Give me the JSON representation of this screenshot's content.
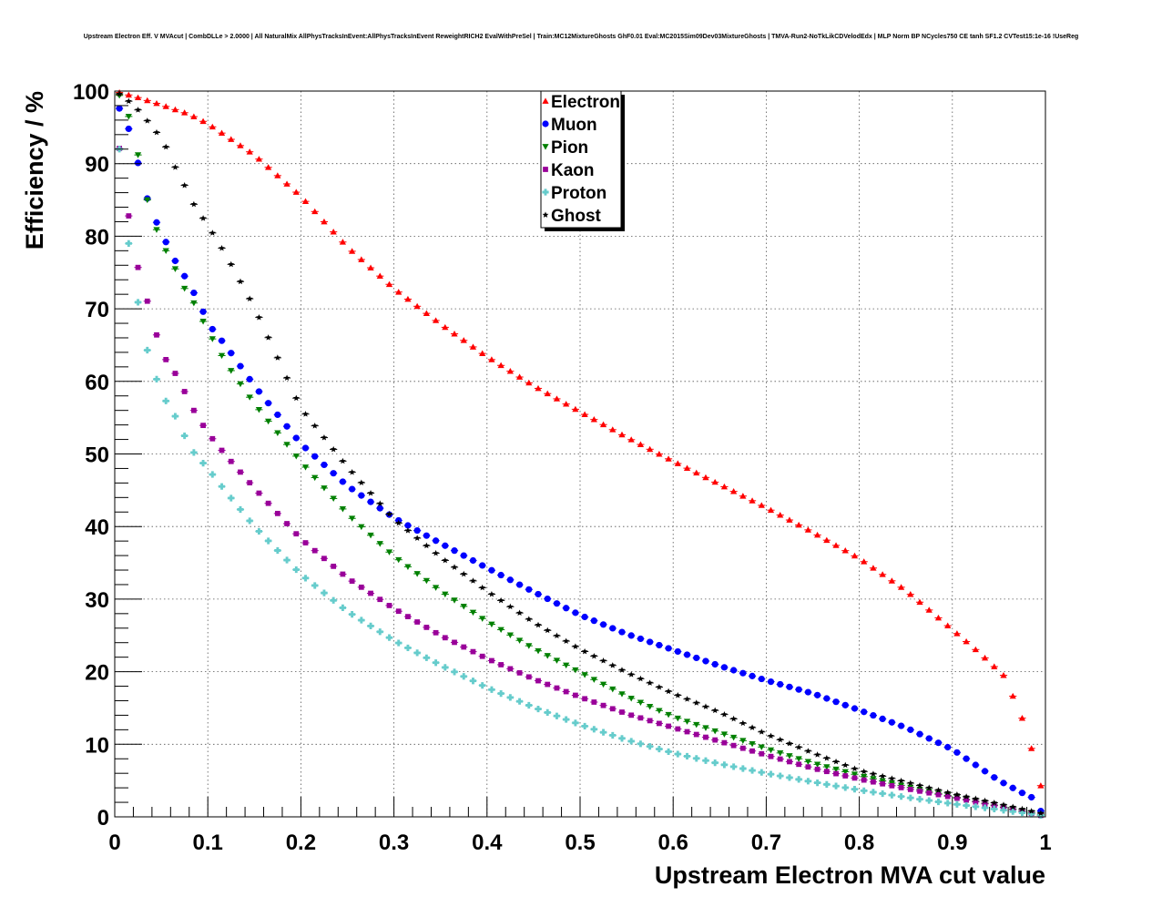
{
  "chart_data": {
    "type": "scatter",
    "title": "Upstream Electron Eff. V MVAcut | CombDLLe > 2.0000 | All NaturalMix AllPhysTracksInEvent:AllPhysTracksInEvent ReweightRICH2 EvalWithPreSel | Train:MC12MixtureGhosts GhF0.01 Eval:MC2015Sim09Dev03MixtureGhosts | TMVA-Run2-NoTkLikCDVelodEdx | MLP Norm BP NCycles750 CE tanh SF1.2 CVTest15:1e-16 !UseReg",
    "xlabel": "Upstream Electron MVA cut value",
    "ylabel": "Efficiency / %",
    "xlim": [
      0,
      1
    ],
    "ylim": [
      0,
      100
    ],
    "xticks": [
      "0",
      "0.1",
      "0.2",
      "0.3",
      "0.4",
      "0.5",
      "0.6",
      "0.7",
      "0.8",
      "0.9",
      "1"
    ],
    "yticks": [
      "0",
      "10",
      "20",
      "30",
      "40",
      "50",
      "60",
      "70",
      "80",
      "90",
      "100"
    ],
    "grid": true,
    "legend_position": "top-center",
    "series": [
      {
        "name": "Electron",
        "color": "#ff0000",
        "marker": "triangle-up",
        "anchors": [
          [
            0.005,
            99.8
          ],
          [
            0.02,
            99.3
          ],
          [
            0.05,
            98.1
          ],
          [
            0.08,
            96.8
          ],
          [
            0.1,
            95.5
          ],
          [
            0.15,
            91.2
          ],
          [
            0.2,
            85.5
          ],
          [
            0.25,
            78.5
          ],
          [
            0.3,
            72.8
          ],
          [
            0.35,
            67.9
          ],
          [
            0.4,
            63.4
          ],
          [
            0.45,
            59.4
          ],
          [
            0.5,
            55.8
          ],
          [
            0.55,
            52.3
          ],
          [
            0.6,
            49.0
          ],
          [
            0.65,
            45.8
          ],
          [
            0.7,
            42.6
          ],
          [
            0.75,
            39.2
          ],
          [
            0.8,
            35.6
          ],
          [
            0.85,
            31.2
          ],
          [
            0.9,
            25.8
          ],
          [
            0.93,
            22.5
          ],
          [
            0.955,
            19.5
          ],
          [
            0.97,
            15.2
          ],
          [
            0.98,
            12.0
          ],
          [
            0.995,
            4.3
          ]
        ]
      },
      {
        "name": "Muon",
        "color": "#0000ff",
        "marker": "circle",
        "anchors": [
          [
            0.005,
            97.6
          ],
          [
            0.015,
            94.8
          ],
          [
            0.025,
            90.1
          ],
          [
            0.035,
            85.2
          ],
          [
            0.045,
            81.9
          ],
          [
            0.055,
            79.2
          ],
          [
            0.065,
            76.6
          ],
          [
            0.075,
            74.5
          ],
          [
            0.085,
            72.2
          ],
          [
            0.095,
            69.6
          ],
          [
            0.105,
            67.2
          ],
          [
            0.12,
            64.8
          ],
          [
            0.15,
            59.4
          ],
          [
            0.2,
            51.4
          ],
          [
            0.25,
            45.6
          ],
          [
            0.3,
            41.2
          ],
          [
            0.35,
            37.7
          ],
          [
            0.4,
            34.3
          ],
          [
            0.45,
            31.0
          ],
          [
            0.5,
            27.8
          ],
          [
            0.55,
            25.2
          ],
          [
            0.6,
            23.0
          ],
          [
            0.65,
            20.8
          ],
          [
            0.7,
            18.8
          ],
          [
            0.75,
            17.0
          ],
          [
            0.8,
            14.7
          ],
          [
            0.85,
            12.3
          ],
          [
            0.9,
            9.3
          ],
          [
            0.95,
            5.0
          ],
          [
            0.975,
            3.3
          ],
          [
            0.985,
            2.7
          ],
          [
            0.995,
            0.8
          ]
        ]
      },
      {
        "name": "Pion",
        "color": "#008000",
        "marker": "triangle-down",
        "anchors": [
          [
            0.005,
            99.4
          ],
          [
            0.015,
            96.5
          ],
          [
            0.025,
            91.2
          ],
          [
            0.035,
            85.0
          ],
          [
            0.045,
            80.9
          ],
          [
            0.055,
            78.0
          ],
          [
            0.065,
            75.5
          ],
          [
            0.075,
            72.8
          ],
          [
            0.085,
            70.8
          ],
          [
            0.1,
            67.0
          ],
          [
            0.12,
            62.4
          ],
          [
            0.15,
            56.9
          ],
          [
            0.2,
            48.9
          ],
          [
            0.25,
            41.7
          ],
          [
            0.3,
            35.9
          ],
          [
            0.35,
            31.1
          ],
          [
            0.4,
            26.9
          ],
          [
            0.45,
            23.2
          ],
          [
            0.5,
            19.9
          ],
          [
            0.55,
            16.6
          ],
          [
            0.6,
            13.8
          ],
          [
            0.65,
            11.6
          ],
          [
            0.7,
            9.4
          ],
          [
            0.75,
            7.4
          ],
          [
            0.8,
            5.7
          ],
          [
            0.85,
            4.2
          ],
          [
            0.9,
            2.8
          ],
          [
            0.95,
            1.5
          ],
          [
            0.995,
            0.3
          ]
        ]
      },
      {
        "name": "Kaon",
        "color": "#990099",
        "marker": "square",
        "anchors": [
          [
            0.005,
            92.1
          ],
          [
            0.015,
            82.8
          ],
          [
            0.025,
            75.7
          ],
          [
            0.045,
            66.4
          ],
          [
            0.055,
            63.0
          ],
          [
            0.065,
            61.1
          ],
          [
            0.075,
            58.6
          ],
          [
            0.085,
            56.0
          ],
          [
            0.1,
            52.9
          ],
          [
            0.12,
            49.7
          ],
          [
            0.15,
            45.3
          ],
          [
            0.2,
            38.3
          ],
          [
            0.25,
            32.9
          ],
          [
            0.3,
            28.7
          ],
          [
            0.35,
            25.0
          ],
          [
            0.4,
            21.8
          ],
          [
            0.45,
            19.0
          ],
          [
            0.5,
            16.5
          ],
          [
            0.55,
            14.2
          ],
          [
            0.6,
            12.3
          ],
          [
            0.65,
            10.4
          ],
          [
            0.7,
            8.5
          ],
          [
            0.75,
            6.7
          ],
          [
            0.8,
            5.2
          ],
          [
            0.85,
            3.9
          ],
          [
            0.9,
            2.7
          ],
          [
            0.95,
            1.4
          ],
          [
            0.995,
            0.2
          ]
        ]
      },
      {
        "name": "Proton",
        "color": "#66cccc",
        "marker": "cross",
        "anchors": [
          [
            0.005,
            92.0
          ],
          [
            0.015,
            79.0
          ],
          [
            0.025,
            70.9
          ],
          [
            0.035,
            64.3
          ],
          [
            0.045,
            60.3
          ],
          [
            0.055,
            57.3
          ],
          [
            0.065,
            55.2
          ],
          [
            0.075,
            52.5
          ],
          [
            0.085,
            50.2
          ],
          [
            0.1,
            48.0
          ],
          [
            0.12,
            44.7
          ],
          [
            0.15,
            40.0
          ],
          [
            0.2,
            33.4
          ],
          [
            0.25,
            28.3
          ],
          [
            0.3,
            24.3
          ],
          [
            0.35,
            20.9
          ],
          [
            0.4,
            17.8
          ],
          [
            0.45,
            15.1
          ],
          [
            0.5,
            12.7
          ],
          [
            0.55,
            10.6
          ],
          [
            0.6,
            8.8
          ],
          [
            0.65,
            7.3
          ],
          [
            0.7,
            6.0
          ],
          [
            0.75,
            4.8
          ],
          [
            0.8,
            3.7
          ],
          [
            0.85,
            2.7
          ],
          [
            0.9,
            1.8
          ],
          [
            0.95,
            1.0
          ],
          [
            0.995,
            0.2
          ]
        ]
      },
      {
        "name": "Ghost",
        "color": "#000000",
        "marker": "star",
        "anchors": [
          [
            0.005,
            99.6
          ],
          [
            0.015,
            98.6
          ],
          [
            0.025,
            97.4
          ],
          [
            0.035,
            95.9
          ],
          [
            0.045,
            94.3
          ],
          [
            0.055,
            92.3
          ],
          [
            0.065,
            89.5
          ],
          [
            0.075,
            87.0
          ],
          [
            0.085,
            84.4
          ],
          [
            0.1,
            81.5
          ],
          [
            0.12,
            77.3
          ],
          [
            0.15,
            70.2
          ],
          [
            0.2,
            56.3
          ],
          [
            0.25,
            48.2
          ],
          [
            0.3,
            41.0
          ],
          [
            0.35,
            35.8
          ],
          [
            0.4,
            31.1
          ],
          [
            0.45,
            26.8
          ],
          [
            0.5,
            23.1
          ],
          [
            0.55,
            19.9
          ],
          [
            0.6,
            17.0
          ],
          [
            0.65,
            14.4
          ],
          [
            0.7,
            11.4
          ],
          [
            0.75,
            8.8
          ],
          [
            0.8,
            6.4
          ],
          [
            0.85,
            4.8
          ],
          [
            0.9,
            3.2
          ],
          [
            0.95,
            1.8
          ],
          [
            0.995,
            0.5
          ]
        ]
      }
    ]
  }
}
